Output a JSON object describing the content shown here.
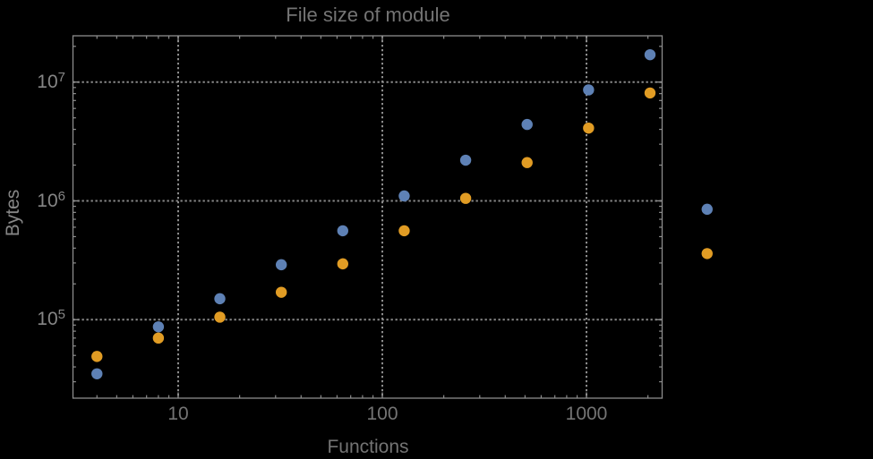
{
  "chart_data": {
    "type": "scatter",
    "title": "File size of module",
    "xlabel": "Functions",
    "ylabel": "Bytes",
    "x_scale": "log",
    "y_scale": "log",
    "grid": "dotted lines at decade ticks",
    "legend": "none",
    "xlim": [
      3.0,
      2360
    ],
    "ylim": [
      21700,
      24700000
    ],
    "x": [
      4,
      8,
      16,
      32,
      64,
      128,
      256,
      512,
      1024,
      2048,
      3900
    ],
    "series": [
      {
        "name": "series-blue",
        "color": "#5e81b5",
        "values": [
          35000,
          87000,
          150000,
          290000,
          560000,
          1100000,
          2200000,
          4400000,
          8600000,
          17000000,
          850000
        ]
      },
      {
        "name": "series-orange",
        "color": "#e19c24",
        "values": [
          49000,
          70000,
          105000,
          170000,
          295000,
          560000,
          1050000,
          2100000,
          4100000,
          8100000,
          360000
        ]
      }
    ],
    "x_ticks": [
      {
        "value": 10,
        "label": "10"
      },
      {
        "value": 100,
        "label": "100"
      },
      {
        "value": 1000,
        "label": "1000"
      }
    ],
    "y_ticks": [
      {
        "value": 100000,
        "base": "10",
        "exp": "5"
      },
      {
        "value": 1000000,
        "base": "10",
        "exp": "6"
      },
      {
        "value": 10000000,
        "base": "10",
        "exp": "7"
      }
    ]
  },
  "style": {
    "background": "#000000",
    "line_color": "#8c8c8c",
    "grid_color": "#8c8c8c",
    "text_color": "#747474",
    "left_text_color": "#868686",
    "point_radius": 6.2
  }
}
